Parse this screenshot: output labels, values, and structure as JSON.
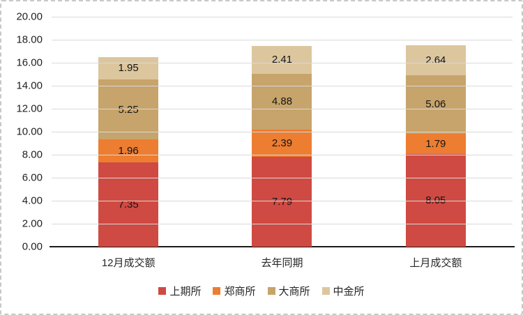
{
  "window": {
    "background": "#ffffff",
    "frame_border_color": "#c8c8c8"
  },
  "chart_data": {
    "type": "bar",
    "stacked": true,
    "title": "",
    "categories": [
      "12月成交额",
      "去年同期",
      "上月成交额"
    ],
    "series": [
      {
        "name": "上期所",
        "color": "#cf4a42",
        "values": [
          7.35,
          7.79,
          8.05
        ]
      },
      {
        "name": "郑商所",
        "color": "#ed7d31",
        "values": [
          1.96,
          2.39,
          1.79
        ]
      },
      {
        "name": "大商所",
        "color": "#c7a46b",
        "values": [
          5.25,
          4.88,
          5.06
        ]
      },
      {
        "name": "中金所",
        "color": "#dcc69e",
        "values": [
          1.95,
          2.41,
          2.64
        ]
      }
    ],
    "ylim": [
      0,
      20
    ],
    "ytick_step": 2,
    "ytick_labels": [
      "0.00",
      "2.00",
      "4.00",
      "6.00",
      "8.00",
      "10.00",
      "12.00",
      "14.00",
      "16.00",
      "18.00",
      "20.00"
    ],
    "grid": true,
    "gridline_color": "#d9d9d9",
    "axis_line_color": "#1a1a1a",
    "text_color": "#1f1f1f",
    "data_labels": true,
    "data_label_decimals": 2,
    "legend_position": "bottom"
  }
}
